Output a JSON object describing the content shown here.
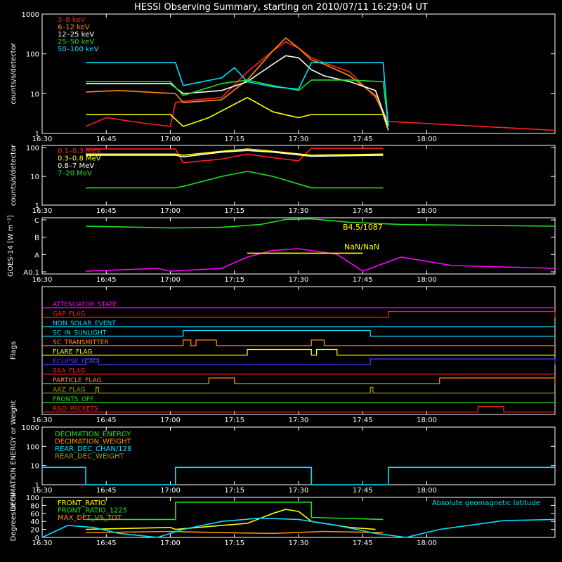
{
  "title": "HESSI Observing Summary, starting on 2010/07/11 16:29:04 UT",
  "time_ticks": [
    "16:30",
    "16:45",
    "17:00",
    "17:15",
    "17:30",
    "17:45",
    "18:00"
  ],
  "chart_data": [
    {
      "type": "line",
      "ylabel": "counts/s/detector",
      "yscale": "log",
      "ylim": [
        1,
        1000
      ],
      "y_ticks": [
        "1",
        "10",
        "100",
        "1000"
      ],
      "series": [
        {
          "name": "3–6 keV",
          "color": "#ff2020",
          "points": [
            [
              16.67,
              1.5
            ],
            [
              16.75,
              2.5
            ],
            [
              16.9,
              1.8
            ],
            [
              17.0,
              1.5
            ],
            [
              17.02,
              6
            ],
            [
              17.1,
              7
            ],
            [
              17.2,
              8
            ],
            [
              17.3,
              35
            ],
            [
              17.4,
              120
            ],
            [
              17.45,
              200
            ],
            [
              17.5,
              140
            ],
            [
              17.55,
              80
            ],
            [
              17.6,
              60
            ],
            [
              17.7,
              35
            ],
            [
              17.8,
              8
            ],
            [
              17.85,
              2
            ],
            [
              18.5,
              1.2
            ]
          ]
        },
        {
          "name": "6–12 keV",
          "color": "#ff8c00",
          "points": [
            [
              16.67,
              11
            ],
            [
              16.8,
              12
            ],
            [
              17.02,
              10
            ],
            [
              17.05,
              6
            ],
            [
              17.2,
              7
            ],
            [
              17.3,
              22
            ],
            [
              17.4,
              120
            ],
            [
              17.45,
              250
            ],
            [
              17.5,
              140
            ],
            [
              17.55,
              70
            ],
            [
              17.6,
              55
            ],
            [
              17.7,
              28
            ],
            [
              17.8,
              9
            ],
            [
              17.85,
              1.5
            ]
          ]
        },
        {
          "name": "12–25 keV",
          "color": "#ffffff",
          "points": [
            [
              16.67,
              18
            ],
            [
              17.0,
              18
            ],
            [
              17.05,
              10
            ],
            [
              17.2,
              12
            ],
            [
              17.3,
              20
            ],
            [
              17.4,
              55
            ],
            [
              17.45,
              90
            ],
            [
              17.5,
              80
            ],
            [
              17.55,
              40
            ],
            [
              17.6,
              28
            ],
            [
              17.7,
              20
            ],
            [
              17.8,
              12
            ],
            [
              17.85,
              1.5
            ]
          ]
        },
        {
          "name": "25–50 keV",
          "color": "#20e020",
          "points": [
            [
              16.67,
              20
            ],
            [
              17.0,
              20
            ],
            [
              17.05,
              9
            ],
            [
              17.2,
              18
            ],
            [
              17.3,
              22
            ],
            [
              17.4,
              16
            ],
            [
              17.45,
              14
            ],
            [
              17.5,
              12
            ],
            [
              17.55,
              22
            ],
            [
              17.7,
              22
            ],
            [
              17.83,
              20
            ],
            [
              17.85,
              1.5
            ]
          ]
        },
        {
          "name": "50–100 keV",
          "color": "#00e0ff",
          "points": [
            [
              16.67,
              60
            ],
            [
              17.02,
              60
            ],
            [
              17.05,
              16
            ],
            [
              17.2,
              25
            ],
            [
              17.25,
              45
            ],
            [
              17.3,
              20
            ],
            [
              17.4,
              15
            ],
            [
              17.5,
              13
            ],
            [
              17.55,
              60
            ],
            [
              17.83,
              60
            ],
            [
              17.85,
              1.5
            ]
          ]
        },
        {
          "name": "",
          "color": "#ffff00",
          "points": [
            [
              16.67,
              3
            ],
            [
              17.0,
              3
            ],
            [
              17.05,
              1.5
            ],
            [
              17.15,
              2.5
            ],
            [
              17.3,
              8
            ],
            [
              17.4,
              3.5
            ],
            [
              17.5,
              2.5
            ],
            [
              17.55,
              3
            ],
            [
              17.83,
              3
            ],
            [
              17.85,
              1.2
            ]
          ]
        }
      ]
    },
    {
      "type": "line",
      "ylabel": "counts/s/detector",
      "yscale": "log",
      "ylim": [
        1,
        120
      ],
      "y_ticks": [
        "1",
        "10",
        "100"
      ],
      "series": [
        {
          "name": "0.1–0.3 MeV",
          "color": "#ff2020",
          "points": [
            [
              16.67,
              90
            ],
            [
              17.02,
              90
            ],
            [
              17.05,
              30
            ],
            [
              17.2,
              40
            ],
            [
              17.3,
              60
            ],
            [
              17.4,
              45
            ],
            [
              17.5,
              35
            ],
            [
              17.55,
              95
            ],
            [
              17.83,
              95
            ]
          ]
        },
        {
          "name": "0.3–0.8 MeV",
          "color": "#ffff00",
          "points": [
            [
              16.67,
              60
            ],
            [
              17.02,
              60
            ],
            [
              17.05,
              55
            ],
            [
              17.2,
              75
            ],
            [
              17.3,
              90
            ],
            [
              17.4,
              75
            ],
            [
              17.55,
              55
            ],
            [
              17.83,
              60
            ]
          ]
        },
        {
          "name": "0.8–7 MeV",
          "color": "#ffffff",
          "points": [
            [
              16.67,
              55
            ],
            [
              17.02,
              55
            ],
            [
              17.05,
              48
            ],
            [
              17.2,
              70
            ],
            [
              17.3,
              80
            ],
            [
              17.4,
              70
            ],
            [
              17.55,
              50
            ],
            [
              17.83,
              55
            ]
          ]
        },
        {
          "name": "7–20 MeV",
          "color": "#20e020",
          "points": [
            [
              16.67,
              4
            ],
            [
              17.02,
              4
            ],
            [
              17.05,
              4.5
            ],
            [
              17.2,
              10
            ],
            [
              17.3,
              15
            ],
            [
              17.4,
              10
            ],
            [
              17.55,
              4
            ],
            [
              17.83,
              4
            ]
          ]
        }
      ]
    },
    {
      "type": "line",
      "ylabel": "GOES-14 [W m⁻²]",
      "y_ticks": [
        "A0.1",
        "A",
        "B",
        "C"
      ],
      "labels": [
        "B4.5/1087",
        "NaN/NaN"
      ],
      "series": [
        {
          "name": "",
          "color": "#20e020",
          "points": [
            [
              16.67,
              0.85
            ],
            [
              17.0,
              0.82
            ],
            [
              17.2,
              0.83
            ],
            [
              17.35,
              0.88
            ],
            [
              17.45,
              0.97
            ],
            [
              17.55,
              0.98
            ],
            [
              17.7,
              0.92
            ],
            [
              17.9,
              0.88
            ],
            [
              18.5,
              0.85
            ]
          ]
        },
        {
          "name": "",
          "color": "#ff00ff",
          "points": [
            [
              16.67,
              0.05
            ],
            [
              16.95,
              0.1
            ],
            [
              17.0,
              0.05
            ],
            [
              17.2,
              0.1
            ],
            [
              17.3,
              0.3
            ],
            [
              17.4,
              0.42
            ],
            [
              17.5,
              0.45
            ],
            [
              17.65,
              0.35
            ],
            [
              17.75,
              0.05
            ],
            [
              17.9,
              0.3
            ],
            [
              18.1,
              0.15
            ],
            [
              18.5,
              0.1
            ]
          ]
        },
        {
          "name": "",
          "color": "#ffff00",
          "points": [
            [
              17.3,
              0.37
            ],
            [
              17.75,
              0.37
            ]
          ]
        }
      ]
    },
    {
      "type": "timeline",
      "ylabel": "Flags",
      "rows": [
        {
          "name": "ATTENUATOR_STATE",
          "color": "#ff00ff",
          "on": []
        },
        {
          "name": "GAP_FLAG",
          "color": "#ff2020",
          "on": [
            [
              17.85,
              18.5
            ]
          ]
        },
        {
          "name": "NON_SOLAR_EVENT",
          "color": "#00e0ff",
          "on": []
        },
        {
          "name": "SC_IN_SUNLIGHT",
          "color": "#00e0ff",
          "on": [
            [
              17.05,
              17.78
            ]
          ]
        },
        {
          "name": "SC_TRANSMITTER",
          "color": "#ff8c00",
          "on": [
            [
              17.05,
              17.08
            ],
            [
              17.1,
              17.18
            ],
            [
              17.55,
              17.6
            ]
          ]
        },
        {
          "name": "FLARE_FLAG",
          "color": "#ffff00",
          "on": [
            [
              17.3,
              17.55
            ],
            [
              17.57,
              17.65
            ]
          ]
        },
        {
          "name": "ECLIPSE_FLAG",
          "color": "#4040ff",
          "on": [
            [
              16.67,
              16.72
            ],
            [
              17.78,
              18.5
            ]
          ]
        },
        {
          "name": "SAA_FLAG",
          "color": "#ff2020",
          "on": []
        },
        {
          "name": "PARTICLE_FLAG",
          "color": "#ff8c00",
          "on": [
            [
              17.15,
              17.25
            ],
            [
              18.05,
              18.5
            ]
          ]
        },
        {
          "name": "AAZ_FLAG",
          "color": "#9aa000",
          "on": [
            [
              16.71,
              16.72
            ],
            [
              17.78,
              17.79
            ]
          ]
        },
        {
          "name": "FRONTS_OFF",
          "color": "#20e020",
          "on": []
        },
        {
          "name": "R&D_PACKETS",
          "color": "#ff2020",
          "on": [
            [
              18.2,
              18.3
            ]
          ]
        }
      ]
    },
    {
      "type": "line",
      "ylabel": "DECIMATION ENERGY or Weight",
      "yscale": "log",
      "ylim": [
        1,
        1000
      ],
      "y_ticks": [
        "1",
        "10",
        "100",
        "1000"
      ],
      "series": [
        {
          "name": "DECIMATION_ENERGY",
          "color": "#20e020",
          "points": []
        },
        {
          "name": "DECIMATION_WEIGHT",
          "color": "#ff8c00",
          "points": []
        },
        {
          "name": "REAR_DEC_CHAN/128",
          "color": "#00e0ff",
          "points": [
            [
              16.5,
              8
            ],
            [
              16.67,
              8
            ],
            [
              16.67,
              1
            ],
            [
              17.02,
              1
            ],
            [
              17.02,
              8
            ],
            [
              17.55,
              8
            ],
            [
              17.55,
              1
            ],
            [
              17.85,
              1
            ],
            [
              17.85,
              8
            ],
            [
              18.5,
              8
            ]
          ]
        },
        {
          "name": "REAR_DEC_WEIGHT",
          "color": "#9aa000",
          "points": []
        }
      ]
    },
    {
      "type": "line",
      "ylabel": "Degrees or %",
      "ylim": [
        0,
        100
      ],
      "y_ticks": [
        "0",
        "20",
        "40",
        "60",
        "80",
        "100"
      ],
      "annotation": "Absolute geomagnetic latitude",
      "series": [
        {
          "name": "FRONT_RATIO",
          "color": "#ffff00",
          "points": [
            [
              16.67,
              20
            ],
            [
              17.0,
              25
            ],
            [
              17.02,
              20
            ],
            [
              17.2,
              30
            ],
            [
              17.3,
              35
            ],
            [
              17.4,
              60
            ],
            [
              17.45,
              70
            ],
            [
              17.5,
              65
            ],
            [
              17.55,
              40
            ],
            [
              17.7,
              25
            ],
            [
              17.8,
              20
            ]
          ]
        },
        {
          "name": "FRONT_RATIO_1225",
          "color": "#20e020",
          "points": [
            [
              16.67,
              45
            ],
            [
              17.02,
              45
            ],
            [
              17.02,
              88
            ],
            [
              17.55,
              88
            ],
            [
              17.55,
              50
            ],
            [
              17.83,
              45
            ]
          ]
        },
        {
          "name": "MAX_DET_VS_TOT",
          "color": "#ff8c00",
          "points": [
            [
              16.67,
              12
            ],
            [
              17.0,
              15
            ],
            [
              17.2,
              12
            ],
            [
              17.4,
              10
            ],
            [
              17.6,
              15
            ],
            [
              17.83,
              12
            ]
          ]
        },
        {
          "name": "",
          "color": "#00e0ff",
          "points": [
            [
              16.5,
              0
            ],
            [
              16.55,
              15
            ],
            [
              16.6,
              30
            ],
            [
              16.7,
              25
            ],
            [
              16.8,
              10
            ],
            [
              16.95,
              0
            ],
            [
              17.05,
              20
            ],
            [
              17.2,
              40
            ],
            [
              17.35,
              48
            ],
            [
              17.5,
              45
            ],
            [
              17.65,
              30
            ],
            [
              17.8,
              10
            ],
            [
              17.92,
              0
            ],
            [
              18.05,
              20
            ],
            [
              18.3,
              42
            ],
            [
              18.5,
              45
            ]
          ]
        }
      ]
    }
  ]
}
